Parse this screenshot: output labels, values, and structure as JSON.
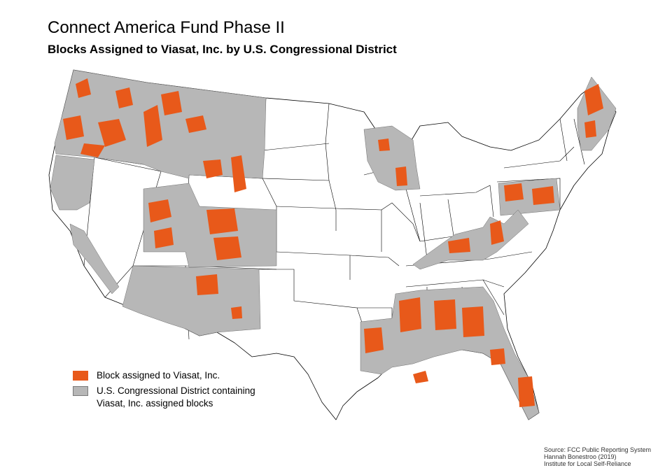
{
  "title": "Connect America Fund Phase II",
  "subtitle": "Blocks Assigned to Viasat, Inc. by U.S. Congressional District",
  "legend": {
    "items": [
      {
        "label": "Block assigned to Viasat, Inc.",
        "color": "#e8591a"
      },
      {
        "label": "U.S. Congressional District containing Viasat, Inc. assigned blocks",
        "color": "#b7b7b7"
      }
    ]
  },
  "source": {
    "line1": "Source: FCC Public Reporting System",
    "line2": "Hannah Bonestroo (2019)",
    "line3": "Institute for Local Self-Reliance"
  },
  "colors": {
    "block": "#e8591a",
    "district": "#b7b7b7",
    "state_fill": "#ffffff",
    "border": "#000000"
  }
}
